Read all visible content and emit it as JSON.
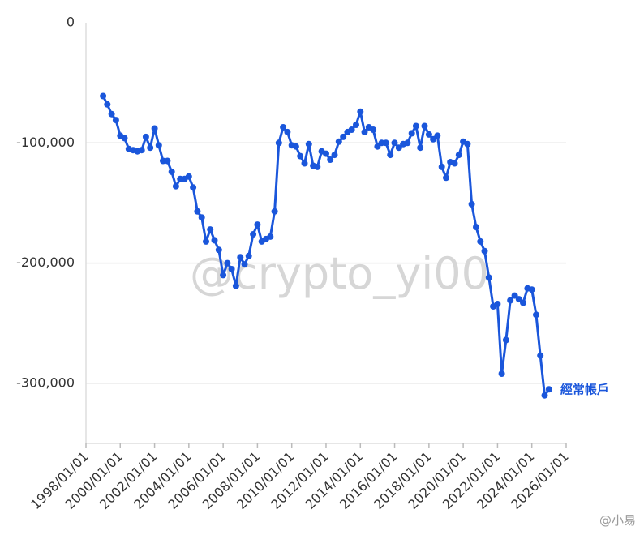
{
  "chart_data": {
    "type": "line",
    "title": "",
    "xlabel": "",
    "ylabel": "",
    "ylim": [
      -350000,
      0
    ],
    "y_ticks": [
      0,
      -100000,
      -200000,
      -300000
    ],
    "y_tick_labels": [
      "0",
      "-100,000",
      "-200,000",
      "-300,000"
    ],
    "x_tick_labels": [
      "1998/01/01",
      "2000/01/01",
      "2002/01/01",
      "2004/01/01",
      "2006/01/01",
      "2008/01/01",
      "2010/01/01",
      "2012/01/01",
      "2014/01/01",
      "2016/01/01",
      "2018/01/01",
      "2020/01/01",
      "2022/01/01",
      "2024/01/01",
      "2026/01/01"
    ],
    "xlim": [
      "1998/01/01",
      "2026/01/01"
    ],
    "grid": "horizontal",
    "series": [
      {
        "name": "經常帳戶",
        "color": "#1a56db",
        "points": [
          [
            "1999/01/01",
            -61000
          ],
          [
            "1999/04/01",
            -68000
          ],
          [
            "1999/07/01",
            -76000
          ],
          [
            "1999/10/01",
            -81000
          ],
          [
            "2000/01/01",
            -94000
          ],
          [
            "2000/04/01",
            -96000
          ],
          [
            "2000/07/01",
            -105000
          ],
          [
            "2000/10/01",
            -106000
          ],
          [
            "2001/01/01",
            -107000
          ],
          [
            "2001/04/01",
            -106000
          ],
          [
            "2001/07/01",
            -95000
          ],
          [
            "2001/10/01",
            -104000
          ],
          [
            "2002/01/01",
            -88000
          ],
          [
            "2002/04/01",
            -102000
          ],
          [
            "2002/07/01",
            -115000
          ],
          [
            "2002/10/01",
            -115000
          ],
          [
            "2003/01/01",
            -124000
          ],
          [
            "2003/04/01",
            -136000
          ],
          [
            "2003/07/01",
            -130000
          ],
          [
            "2003/10/01",
            -130000
          ],
          [
            "2004/01/01",
            -128000
          ],
          [
            "2004/04/01",
            -137000
          ],
          [
            "2004/07/01",
            -157000
          ],
          [
            "2004/10/01",
            -162000
          ],
          [
            "2005/01/01",
            -182000
          ],
          [
            "2005/04/01",
            -172000
          ],
          [
            "2005/07/01",
            -181000
          ],
          [
            "2005/10/01",
            -189000
          ],
          [
            "2006/01/01",
            -210000
          ],
          [
            "2006/04/01",
            -200000
          ],
          [
            "2006/07/01",
            -205000
          ],
          [
            "2006/10/01",
            -219000
          ],
          [
            "2007/01/01",
            -195000
          ],
          [
            "2007/04/01",
            -201000
          ],
          [
            "2007/07/01",
            -194000
          ],
          [
            "2007/10/01",
            -176000
          ],
          [
            "2008/01/01",
            -168000
          ],
          [
            "2008/04/01",
            -182000
          ],
          [
            "2008/07/01",
            -180000
          ],
          [
            "2008/10/01",
            -178000
          ],
          [
            "2009/01/01",
            -157000
          ],
          [
            "2009/04/01",
            -100000
          ],
          [
            "2009/07/01",
            -87000
          ],
          [
            "2009/10/01",
            -91000
          ],
          [
            "2010/01/01",
            -102000
          ],
          [
            "2010/04/01",
            -103000
          ],
          [
            "2010/07/01",
            -111000
          ],
          [
            "2010/10/01",
            -117000
          ],
          [
            "2011/01/01",
            -101000
          ],
          [
            "2011/04/01",
            -119000
          ],
          [
            "2011/07/01",
            -120000
          ],
          [
            "2011/10/01",
            -107000
          ],
          [
            "2012/01/01",
            -109000
          ],
          [
            "2012/04/01",
            -114000
          ],
          [
            "2012/07/01",
            -110000
          ],
          [
            "2012/10/01",
            -99000
          ],
          [
            "2013/01/01",
            -95000
          ],
          [
            "2013/04/01",
            -91000
          ],
          [
            "2013/07/01",
            -89000
          ],
          [
            "2013/10/01",
            -85000
          ],
          [
            "2014/01/01",
            -74000
          ],
          [
            "2014/04/01",
            -91000
          ],
          [
            "2014/07/01",
            -87000
          ],
          [
            "2014/10/01",
            -89000
          ],
          [
            "2015/01/01",
            -103000
          ],
          [
            "2015/04/01",
            -100000
          ],
          [
            "2015/07/01",
            -100000
          ],
          [
            "2015/10/01",
            -110000
          ],
          [
            "2016/01/01",
            -100000
          ],
          [
            "2016/04/01",
            -104000
          ],
          [
            "2016/07/01",
            -101000
          ],
          [
            "2016/10/01",
            -100000
          ],
          [
            "2017/01/01",
            -92000
          ],
          [
            "2017/04/01",
            -86000
          ],
          [
            "2017/07/01",
            -104000
          ],
          [
            "2017/10/01",
            -86000
          ],
          [
            "2018/01/01",
            -93000
          ],
          [
            "2018/04/01",
            -97000
          ],
          [
            "2018/07/01",
            -94000
          ],
          [
            "2018/10/01",
            -120000
          ],
          [
            "2019/01/01",
            -129000
          ],
          [
            "2019/04/01",
            -116000
          ],
          [
            "2019/07/01",
            -117000
          ],
          [
            "2019/10/01",
            -110000
          ],
          [
            "2020/01/01",
            -99000
          ],
          [
            "2020/04/01",
            -101000
          ],
          [
            "2020/07/01",
            -151000
          ],
          [
            "2020/10/01",
            -170000
          ],
          [
            "2021/01/01",
            -182000
          ],
          [
            "2021/04/01",
            -190000
          ],
          [
            "2021/07/01",
            -212000
          ],
          [
            "2021/10/01",
            -236000
          ],
          [
            "2022/01/01",
            -234000
          ],
          [
            "2022/04/01",
            -292000
          ],
          [
            "2022/07/01",
            -264000
          ],
          [
            "2022/10/01",
            -231000
          ],
          [
            "2023/01/01",
            -227000
          ],
          [
            "2023/04/01",
            -230000
          ],
          [
            "2023/07/01",
            -233000
          ],
          [
            "2023/10/01",
            -221000
          ],
          [
            "2024/01/01",
            -222000
          ],
          [
            "2024/04/01",
            -243000
          ],
          [
            "2024/07/01",
            -277000
          ],
          [
            "2024/10/01",
            -310000
          ],
          [
            "2025/01/01",
            -305000
          ]
        ]
      }
    ]
  },
  "watermark": "@crypto_yi00",
  "footer_mark": "@小易"
}
